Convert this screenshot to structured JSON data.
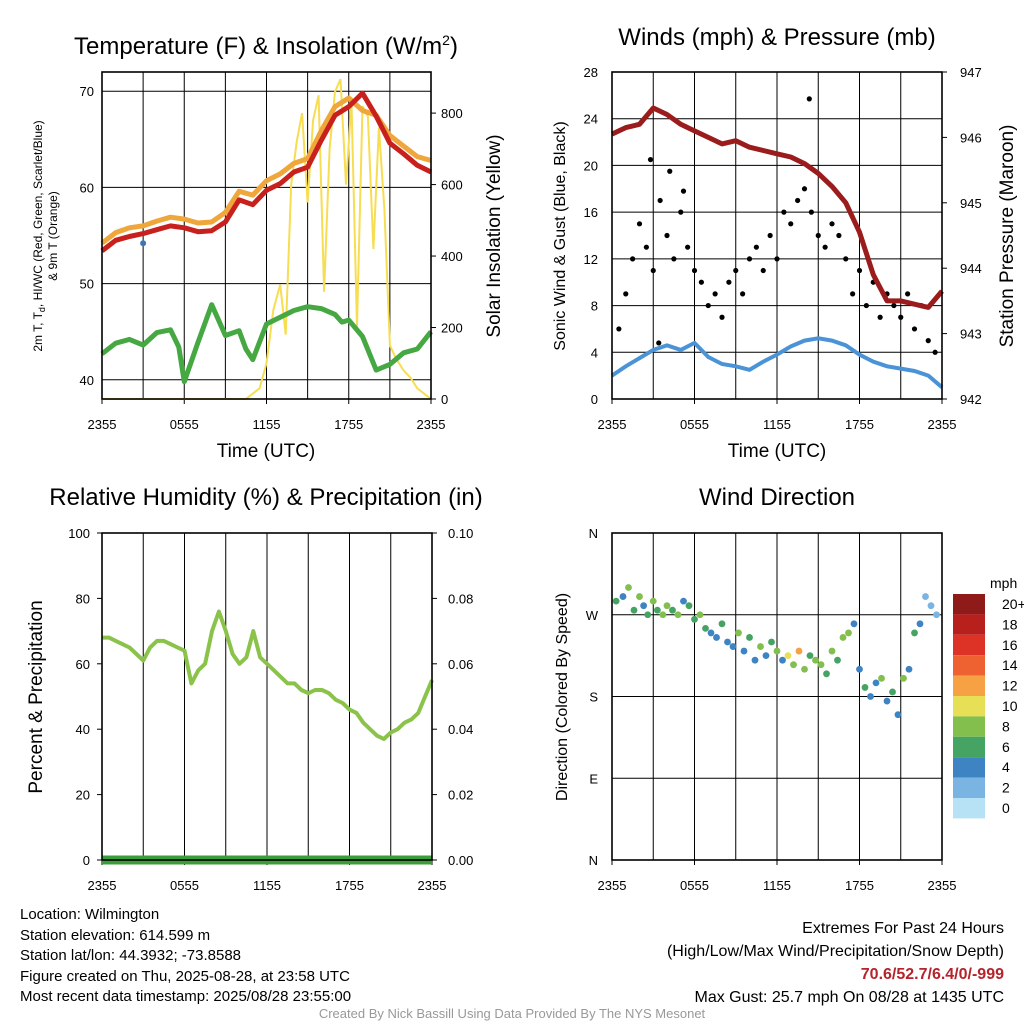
{
  "chart_data": [
    {
      "id": "temp",
      "type": "line",
      "title": "Temperature (F) & Insolation (W/m",
      "title_sup": "2",
      "title_end": ")",
      "xlabel": "Time (UTC)",
      "ylabel_lines": [
        "2m T, T",
        "d",
        ", HI/WC (Red, Green, Scarlet/Blue)",
        "& 9m T (Orange)"
      ],
      "y2label": "Solar Insolation (Yellow)",
      "xticks": [
        "2355",
        "0555",
        "1155",
        "1755",
        "2355"
      ],
      "x_range_hours": [
        0,
        24
      ],
      "yticks": [
        40,
        50,
        60,
        70
      ],
      "ylim": [
        38,
        72
      ],
      "y2ticks": [
        0,
        200,
        400,
        600,
        800
      ],
      "y2lim": [
        0,
        915
      ],
      "series": [
        {
          "color": "#efa63a",
          "x": [
            0,
            1,
            2,
            3,
            4,
            5,
            6,
            7,
            8,
            9,
            10,
            11,
            12,
            13,
            14,
            15,
            16,
            17,
            18,
            19,
            20,
            21,
            22,
            23,
            24
          ],
          "y": [
            54.2,
            55.3,
            55.8,
            56.0,
            56.5,
            56.9,
            56.7,
            56.3,
            56.4,
            57.4,
            59.6,
            59.2,
            60.7,
            61.4,
            62.5,
            63.0,
            65.9,
            68.4,
            69.3,
            68.0,
            67.5,
            65.4,
            64.3,
            63.2,
            62.8
          ]
        },
        {
          "color": "#c8201c",
          "x": [
            0,
            1,
            2,
            3,
            4,
            5,
            6,
            7,
            8,
            9,
            10,
            11,
            12,
            13,
            14,
            15,
            16,
            17,
            18,
            19,
            20,
            21,
            22,
            23,
            24
          ],
          "y": [
            53.4,
            54.5,
            54.9,
            55.2,
            55.6,
            56.0,
            55.8,
            55.4,
            55.5,
            56.4,
            58.7,
            58.2,
            59.7,
            60.4,
            61.6,
            62.1,
            64.9,
            67.5,
            68.4,
            69.8,
            67.4,
            64.6,
            63.5,
            62.3,
            61.6
          ]
        },
        {
          "color": "#46a842",
          "x": [
            0,
            1,
            2,
            3,
            4,
            5,
            5.6,
            6,
            7,
            8,
            9,
            10,
            10.5,
            11,
            12,
            13,
            14,
            15,
            16,
            17,
            17.5,
            18,
            19,
            20,
            21,
            22,
            23,
            24
          ],
          "y": [
            42.7,
            43.8,
            44.2,
            43.6,
            44.9,
            45.2,
            43.4,
            39.8,
            43.9,
            47.8,
            44.6,
            45.1,
            43.2,
            42.1,
            45.8,
            46.5,
            47.2,
            47.6,
            47.4,
            46.8,
            46.0,
            46.2,
            44.5,
            41.0,
            41.6,
            42.8,
            43.2,
            45.0
          ]
        }
      ],
      "insolation": {
        "color": "#f7dd52",
        "x": [
          0,
          6,
          8,
          10.5,
          11.5,
          12,
          12.5,
          13,
          13.4,
          13.8,
          14.2,
          14.6,
          15,
          15.4,
          15.8,
          16.2,
          16.6,
          17,
          17.4,
          17.8,
          18.2,
          18.6,
          19,
          19.4,
          19.8,
          20.2,
          20.6,
          21,
          21.5,
          22,
          22.5,
          23,
          24
        ],
        "y": [
          0,
          0,
          0,
          0,
          30,
          100,
          250,
          320,
          180,
          600,
          720,
          800,
          550,
          780,
          850,
          300,
          700,
          860,
          895,
          600,
          830,
          200,
          820,
          790,
          420,
          760,
          530,
          150,
          110,
          80,
          60,
          30,
          0
        ]
      },
      "markers": [
        {
          "x": 3,
          "y": 54.2,
          "color": "#3e75b8"
        }
      ]
    },
    {
      "id": "wind",
      "type": "line",
      "title": "Winds (mph) & Pressure (mb)",
      "xlabel": "Time (UTC)",
      "ylabel": "Sonic Wind & Gust (Blue, Black)",
      "y2label": "Station Pressure (Maroon)",
      "xticks": [
        "2355",
        "0555",
        "1155",
        "1755",
        "2355"
      ],
      "x_range_hours": [
        0,
        24
      ],
      "yticks": [
        0,
        4,
        8,
        12,
        16,
        20,
        24,
        28
      ],
      "ylim": [
        0,
        28
      ],
      "y2ticks": [
        942,
        943,
        944,
        945,
        946,
        947
      ],
      "y2lim": [
        942,
        947
      ],
      "pressure": {
        "color": "#9b1c1c",
        "x": [
          0,
          1,
          2,
          3,
          4,
          5,
          6,
          7,
          8,
          9,
          10,
          11,
          12,
          13,
          14,
          15,
          16,
          17,
          18,
          19,
          20,
          21,
          22,
          23,
          24
        ],
        "y": [
          946.05,
          946.15,
          946.2,
          946.45,
          946.35,
          946.2,
          946.1,
          946.0,
          945.9,
          945.95,
          945.85,
          945.8,
          945.75,
          945.7,
          945.6,
          945.45,
          945.25,
          945.0,
          944.55,
          943.9,
          943.5,
          943.5,
          943.45,
          943.4,
          943.65
        ]
      },
      "sustained": {
        "color": "#4a93d6",
        "x": [
          0,
          1,
          2,
          3,
          4,
          5,
          6,
          7,
          8,
          9,
          10,
          11,
          12,
          13,
          14,
          15,
          16,
          17,
          18,
          19,
          20,
          21,
          22,
          23,
          24
        ],
        "y": [
          2.0,
          2.8,
          3.5,
          4.2,
          4.6,
          4.2,
          4.8,
          3.6,
          3.0,
          2.8,
          2.5,
          3.2,
          3.8,
          4.5,
          5.0,
          5.2,
          5.0,
          4.6,
          3.8,
          3.2,
          2.8,
          2.6,
          2.4,
          2.0,
          1.0
        ]
      },
      "gusts": {
        "color": "#000000",
        "x": [
          0.5,
          1,
          1.5,
          2,
          2.5,
          3,
          3.5,
          4,
          4.5,
          5,
          5.5,
          6,
          6.5,
          7,
          7.5,
          8,
          8.5,
          9,
          9.5,
          10,
          10.5,
          11,
          11.5,
          12,
          12.5,
          13,
          13.5,
          14,
          14.5,
          15,
          15.5,
          16,
          16.5,
          17,
          17.5,
          18,
          18.5,
          19,
          19.5,
          20,
          20.5,
          21,
          21.5,
          22,
          22.5,
          23,
          23.5
        ],
        "y": [
          6,
          9,
          12,
          15,
          13,
          11,
          17,
          14,
          12,
          16,
          13,
          11,
          10,
          8,
          9,
          7,
          10,
          11,
          9,
          12,
          13,
          11,
          14,
          12,
          16,
          15,
          17,
          18,
          16,
          14,
          13,
          15,
          14,
          12,
          9,
          11,
          8,
          10,
          7,
          9,
          8,
          7,
          9,
          6,
          8,
          5,
          4
        ]
      },
      "gust_extra": {
        "x": [
          4.2,
          14.35,
          5.2,
          3.4,
          2.8
        ],
        "y": [
          19.5,
          25.7,
          17.8,
          4.8,
          20.5
        ]
      }
    },
    {
      "id": "rh",
      "type": "line",
      "title": "Relative Humidity (%) & Precipitation (in)",
      "ylabel": "Percent & Precipitation",
      "xticks": [
        "2355",
        "0555",
        "1155",
        "1755",
        "2355"
      ],
      "x_range_hours": [
        0,
        24
      ],
      "yticks": [
        0,
        20,
        40,
        60,
        80,
        100
      ],
      "ylim": [
        0,
        100
      ],
      "y2ticks": [
        "0.00",
        "0.02",
        "0.04",
        "0.06",
        "0.08",
        "0.10"
      ],
      "y2lim": [
        0,
        0.1
      ],
      "humidity": {
        "color": "#8bc34a",
        "x": [
          0,
          0.5,
          1,
          1.5,
          2,
          2.5,
          3,
          3.5,
          4,
          4.5,
          5,
          5.5,
          6,
          6.5,
          7,
          7.5,
          8,
          8.5,
          9,
          9.5,
          10,
          10.5,
          11,
          11.5,
          12,
          12.5,
          13,
          13.5,
          14,
          14.5,
          15,
          15.5,
          16,
          16.5,
          17,
          17.5,
          18,
          18.5,
          19,
          19.5,
          20,
          20.5,
          21,
          21.5,
          22,
          22.5,
          23,
          23.5,
          24
        ],
        "y": [
          68,
          68,
          67,
          66,
          65,
          63,
          61,
          65,
          67,
          67,
          66,
          65,
          64,
          54,
          58,
          60,
          70,
          76,
          70,
          63,
          60,
          62,
          70,
          62,
          60,
          58,
          56,
          54,
          54,
          52,
          51,
          52,
          52,
          51,
          49,
          48,
          46,
          45,
          42,
          40,
          38,
          37,
          39,
          40,
          42,
          43,
          45,
          50,
          55
        ]
      },
      "precipitation": {
        "color": "#3a9f3a",
        "x": [
          0,
          24
        ],
        "y": [
          0,
          0
        ]
      }
    },
    {
      "id": "dir",
      "type": "scatter",
      "title": "Wind Direction",
      "ylabel": "Direction (Colored By Speed)",
      "xticks": [
        "2355",
        "0555",
        "1155",
        "1755",
        "2355"
      ],
      "x_range_hours": [
        0,
        24
      ],
      "ytick_labels": [
        "N",
        "E",
        "S",
        "W",
        "N"
      ],
      "ytick_values": [
        0,
        90,
        180,
        270,
        360
      ],
      "ylim": [
        0,
        360
      ],
      "legend": {
        "title": "mph",
        "labels": [
          "20+",
          "18",
          "16",
          "14",
          "12",
          "10",
          "8",
          "6",
          "4",
          "2",
          "0"
        ],
        "colors": [
          "#8f1a1a",
          "#b8201e",
          "#dd3327",
          "#ee6130",
          "#f6a143",
          "#e7df55",
          "#82bf4c",
          "#45a363",
          "#3e84c2",
          "#7ab4e2",
          "#b7e1f5"
        ]
      },
      "points": {
        "x": [
          0.3,
          0.8,
          1.2,
          1.6,
          2.0,
          2.3,
          2.6,
          3.0,
          3.3,
          3.7,
          4.0,
          4.4,
          4.8,
          5.2,
          5.6,
          6.0,
          6.4,
          6.8,
          7.2,
          7.6,
          8.0,
          8.4,
          8.8,
          9.2,
          9.6,
          10.0,
          10.4,
          10.8,
          11.2,
          11.6,
          12.0,
          12.4,
          12.8,
          13.2,
          13.6,
          14.0,
          14.4,
          14.8,
          15.2,
          15.6,
          16.0,
          16.4,
          16.8,
          17.2,
          17.6,
          18.0,
          18.4,
          18.8,
          19.2,
          19.6,
          20.0,
          20.4,
          20.8,
          21.2,
          21.6,
          22.0,
          22.4,
          22.8,
          23.2,
          23.6
        ],
        "y": [
          285,
          290,
          300,
          275,
          290,
          280,
          270,
          285,
          275,
          270,
          280,
          275,
          270,
          285,
          280,
          265,
          270,
          255,
          250,
          245,
          260,
          240,
          235,
          250,
          230,
          245,
          220,
          235,
          225,
          240,
          230,
          220,
          225,
          215,
          230,
          210,
          225,
          220,
          215,
          205,
          230,
          220,
          245,
          250,
          260,
          210,
          190,
          180,
          195,
          200,
          175,
          185,
          160,
          200,
          210,
          250,
          260,
          290,
          280,
          270
        ],
        "speed": [
          3,
          2,
          4,
          3,
          4,
          2,
          3,
          4,
          3,
          4,
          4,
          3,
          4,
          2,
          3,
          3,
          4,
          3,
          2,
          2,
          3,
          2,
          2,
          4,
          2,
          3,
          2,
          4,
          2,
          3,
          4,
          2,
          5,
          4,
          6,
          4,
          3,
          4,
          4,
          3,
          4,
          3,
          4,
          4,
          2,
          2,
          3,
          2,
          2,
          4,
          2,
          3,
          2,
          4,
          2,
          3,
          2,
          1,
          1,
          1
        ]
      }
    }
  ],
  "info": {
    "location": "Location: Wilmington",
    "elevation": "Station elevation: 614.599 m",
    "latlon": "Station lat/lon: 44.3932; -73.8588",
    "created": "Figure created on Thu, 2025-08-28, at 23:58 UTC",
    "recent": "Most recent data timestamp: 2025/08/28 23:55:00"
  },
  "extremes": {
    "title": "Extremes For Past 24 Hours",
    "subtitle": "(High/Low/Max Wind/Precipitation/Snow Depth)",
    "values": "70.6/52.7/6.4/0/-999",
    "gust": "Max Gust: 25.7 mph On 08/28 at 1435 UTC"
  },
  "credit": "Created By Nick Bassill Using Data Provided By The NYS Mesonet"
}
